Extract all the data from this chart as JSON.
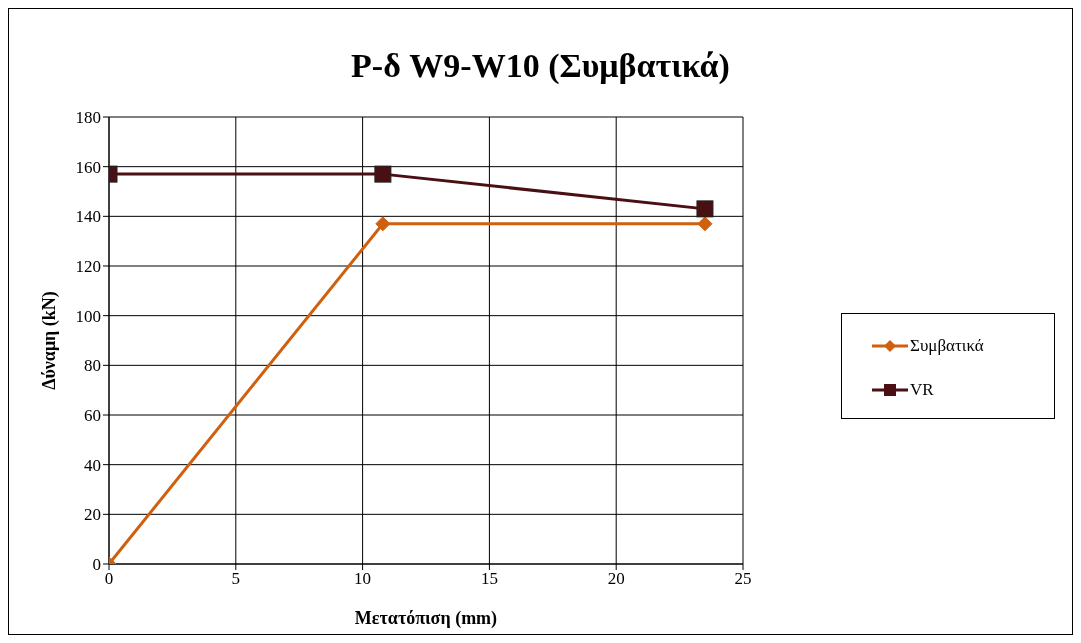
{
  "chart_data": {
    "type": "line",
    "title": "P-δ W9-W10 (Συμβατικά)",
    "xlabel": "Μετατόπιση (mm)",
    "ylabel": "Δύναμη (kN)",
    "xlim": [
      0,
      25
    ],
    "xticks": [
      0,
      5,
      10,
      15,
      20,
      25
    ],
    "ylim": [
      0,
      180
    ],
    "yticks": [
      0,
      20,
      40,
      60,
      80,
      100,
      120,
      140,
      160,
      180
    ],
    "grid": true,
    "legend": "right",
    "series": [
      {
        "name": "Συμβατικά",
        "color": "#d0600e",
        "marker": "diamond",
        "x": [
          0,
          10.8,
          23.5
        ],
        "values": [
          0,
          137,
          137
        ]
      },
      {
        "name": "VR",
        "color": "#4a0f12",
        "marker": "square",
        "x": [
          0,
          10.8,
          23.5
        ],
        "values": [
          157,
          157,
          143
        ]
      }
    ]
  }
}
